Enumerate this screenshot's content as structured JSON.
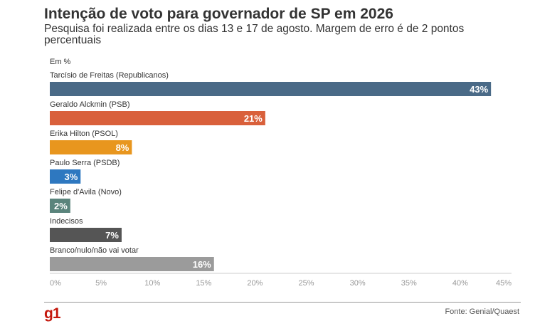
{
  "colors": {
    "axis_text": "#999999",
    "axis_line": "#cccccc",
    "label_text": "#333333",
    "value_text": "#ffffff",
    "brand": "#c4170c"
  },
  "footer": {
    "logo": "g1",
    "source": "Fonte: Genial/Quaest"
  },
  "chart_data": {
    "type": "bar",
    "orientation": "horizontal",
    "title": "Intenção de voto para governador de SP em 2026",
    "subtitle": "Pesquisa foi realizada entre os dias 13 e 17 de agosto. Margem de erro é de 2 pontos percentuais",
    "unit_label": "Em %",
    "categories": [
      "Tarcísio de Freitas (Republicanos)",
      "Geraldo Alckmin (PSB)",
      "Erika Hilton (PSOL)",
      "Paulo Serra (PSDB)",
      "Felipe d'Avila (Novo)",
      "Indecisos",
      "Branco/nulo/não vai votar"
    ],
    "values": [
      43,
      21,
      8,
      3,
      2,
      7,
      16
    ],
    "value_labels": [
      "43%",
      "21%",
      "8%",
      "3%",
      "2%",
      "7%",
      "16%"
    ],
    "bar_colors": [
      "#4a6a87",
      "#d9603b",
      "#e8961e",
      "#2e78c0",
      "#5a847c",
      "#555555",
      "#9b9b9b"
    ],
    "xlim": [
      0,
      45
    ],
    "xticks": [
      0,
      5,
      10,
      15,
      20,
      25,
      30,
      35,
      40,
      45
    ],
    "xtick_labels": [
      "0%",
      "5%",
      "10%",
      "15%",
      "20%",
      "25%",
      "30%",
      "35%",
      "40%",
      "45%"
    ],
    "grid": false
  }
}
